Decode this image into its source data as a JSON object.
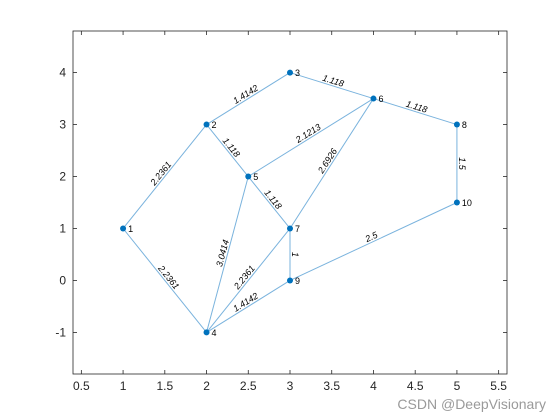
{
  "chart_data": {
    "type": "graph",
    "title": "",
    "xlabel": "",
    "ylabel": "",
    "xlim": [
      0.4,
      5.6
    ],
    "ylim": [
      -1.8,
      4.8
    ],
    "xticks": [
      "0.5",
      "1",
      "1.5",
      "2",
      "2.5",
      "3",
      "3.5",
      "4",
      "4.5",
      "5",
      "5.5"
    ],
    "yticks": [
      "-1",
      "0",
      "1",
      "2",
      "3",
      "4"
    ],
    "grid": false,
    "colors": {
      "edge": "#7ab3dd",
      "node": "#0072bd",
      "axis": "#262626"
    },
    "nodes": [
      {
        "id": "1",
        "x": 1,
        "y": 1
      },
      {
        "id": "2",
        "x": 2,
        "y": 3
      },
      {
        "id": "3",
        "x": 3,
        "y": 4
      },
      {
        "id": "4",
        "x": 2,
        "y": -1
      },
      {
        "id": "5",
        "x": 2.5,
        "y": 2
      },
      {
        "id": "6",
        "x": 4,
        "y": 3.5
      },
      {
        "id": "7",
        "x": 3,
        "y": 1
      },
      {
        "id": "8",
        "x": 5,
        "y": 3
      },
      {
        "id": "9",
        "x": 3,
        "y": 0
      },
      {
        "id": "10",
        "x": 5,
        "y": 1.5
      }
    ],
    "edges": [
      {
        "source": "1",
        "target": "2",
        "weight": "2.2361"
      },
      {
        "source": "1",
        "target": "4",
        "weight": "2.2361"
      },
      {
        "source": "2",
        "target": "3",
        "weight": "1.4142"
      },
      {
        "source": "2",
        "target": "5",
        "weight": "1.118"
      },
      {
        "source": "3",
        "target": "6",
        "weight": "1.118"
      },
      {
        "source": "4",
        "target": "5",
        "weight": "3.0414"
      },
      {
        "source": "4",
        "target": "7",
        "weight": "2.2361"
      },
      {
        "source": "4",
        "target": "9",
        "weight": "1.4142"
      },
      {
        "source": "5",
        "target": "6",
        "weight": "2.1213"
      },
      {
        "source": "5",
        "target": "7",
        "weight": "1.118"
      },
      {
        "source": "6",
        "target": "7",
        "weight": "2.6926"
      },
      {
        "source": "6",
        "target": "8",
        "weight": "1.118"
      },
      {
        "source": "7",
        "target": "9",
        "weight": "1"
      },
      {
        "source": "8",
        "target": "10",
        "weight": "1.5"
      },
      {
        "source": "9",
        "target": "10",
        "weight": "2.5"
      }
    ]
  },
  "watermark": "CSDN @DeepVisionary"
}
